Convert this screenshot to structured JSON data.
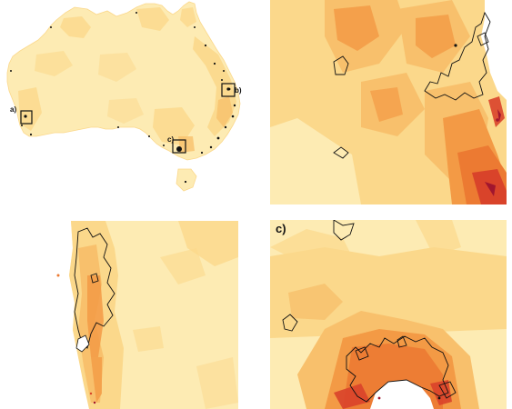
{
  "figure": {
    "overview_labels": {
      "a": "a)",
      "b": "b)",
      "c": "c)"
    },
    "panels": [
      {
        "id": "b",
        "label": ""
      },
      {
        "id": "a",
        "label": "a)"
      },
      {
        "id": "c",
        "label": "c)"
      }
    ]
  },
  "colors": {
    "lightest": "#fdebb3",
    "light": "#fbd88b",
    "medium": "#f8c06c",
    "orange": "#f39a45",
    "deep_orange": "#ec7a32",
    "red": "#d9432a",
    "dark_red": "#a1162e",
    "outline": "#111111"
  }
}
